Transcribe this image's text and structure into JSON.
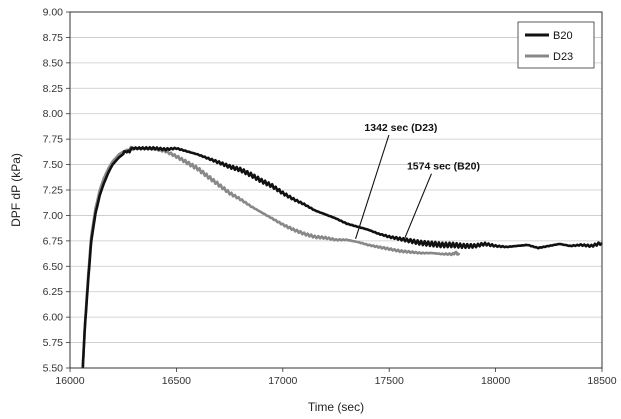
{
  "chart_data": {
    "type": "line",
    "title": "",
    "xlabel": "Time (sec)",
    "ylabel": "DPF dP (kPa)",
    "xlim": [
      16000,
      18500
    ],
    "ylim": [
      5.5,
      9.0
    ],
    "x_ticks": [
      "16000",
      "16500",
      "17000",
      "17500",
      "18000",
      "18500"
    ],
    "y_ticks": [
      "5.50",
      "5.75",
      "6.00",
      "6.25",
      "6.50",
      "6.75",
      "7.00",
      "7.25",
      "7.50",
      "7.75",
      "8.00",
      "8.25",
      "8.50",
      "8.75",
      "9.00"
    ],
    "grid": "horizontal",
    "legend_position": "top-right",
    "series": [
      {
        "name": "B20",
        "color": "#111111",
        "x": [
          16060,
          16070,
          16085,
          16100,
          16120,
          16140,
          16160,
          16180,
          16200,
          16230,
          16260,
          16300,
          16350,
          16400,
          16450,
          16500,
          16550,
          16600,
          16650,
          16700,
          16750,
          16800,
          16850,
          16900,
          16950,
          17000,
          17050,
          17100,
          17150,
          17200,
          17250,
          17300,
          17350,
          17400,
          17450,
          17500,
          17550,
          17600,
          17650,
          17700,
          17750,
          17800,
          17850,
          17900,
          17950,
          18000,
          18050,
          18100,
          18150,
          18200,
          18250,
          18300,
          18350,
          18400,
          18450,
          18500
        ],
        "y": [
          5.5,
          5.9,
          6.35,
          6.75,
          7.02,
          7.2,
          7.32,
          7.42,
          7.5,
          7.57,
          7.62,
          7.66,
          7.66,
          7.66,
          7.65,
          7.66,
          7.63,
          7.6,
          7.56,
          7.52,
          7.48,
          7.45,
          7.4,
          7.34,
          7.29,
          7.22,
          7.16,
          7.11,
          7.05,
          7.01,
          6.97,
          6.92,
          6.89,
          6.86,
          6.82,
          6.79,
          6.77,
          6.75,
          6.73,
          6.72,
          6.71,
          6.71,
          6.7,
          6.7,
          6.72,
          6.7,
          6.69,
          6.7,
          6.71,
          6.68,
          6.7,
          6.72,
          6.7,
          6.71,
          6.7,
          6.73
        ]
      },
      {
        "name": "D23",
        "color": "#888888",
        "x": [
          16060,
          16070,
          16085,
          16100,
          16120,
          16140,
          16160,
          16180,
          16200,
          16230,
          16260,
          16300,
          16350,
          16400,
          16450,
          16500,
          16550,
          16600,
          16650,
          16700,
          16750,
          16800,
          16850,
          16900,
          16950,
          17000,
          17050,
          17100,
          17150,
          17200,
          17250,
          17300,
          17350,
          17400,
          17450,
          17500,
          17550,
          17600,
          17650,
          17700,
          17750,
          17800,
          17830
        ],
        "y": [
          5.5,
          5.92,
          6.4,
          6.8,
          7.07,
          7.25,
          7.37,
          7.46,
          7.53,
          7.6,
          7.64,
          7.66,
          7.66,
          7.65,
          7.63,
          7.58,
          7.52,
          7.46,
          7.38,
          7.3,
          7.22,
          7.16,
          7.09,
          7.03,
          6.97,
          6.91,
          6.86,
          6.82,
          6.79,
          6.78,
          6.76,
          6.76,
          6.74,
          6.71,
          6.69,
          6.67,
          6.65,
          6.64,
          6.63,
          6.63,
          6.62,
          6.62,
          6.63
        ]
      }
    ],
    "annotations": [
      {
        "text": "1342 sec (D23)",
        "point": [
          17342,
          6.77
        ],
        "label_at": [
          17555,
          7.83
        ]
      },
      {
        "text": "1574 sec (B20)",
        "point": [
          17574,
          6.78
        ],
        "label_at": [
          17755,
          7.45
        ]
      }
    ]
  }
}
